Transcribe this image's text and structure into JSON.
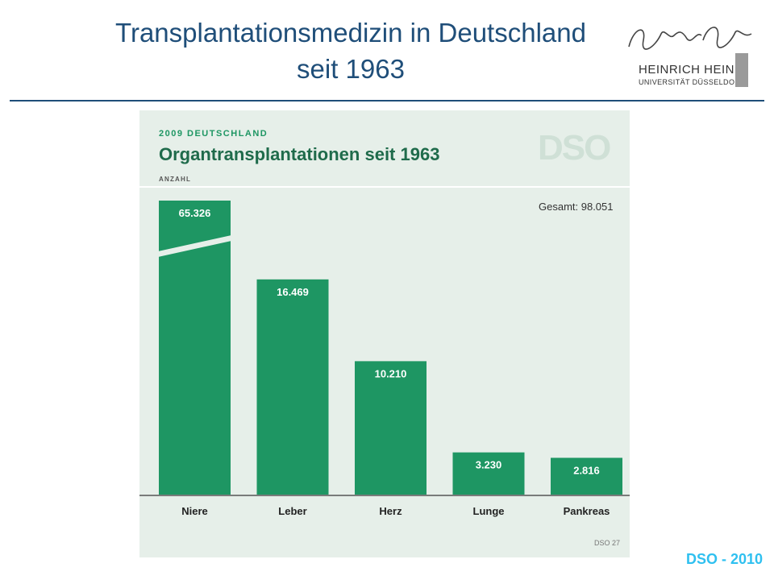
{
  "slide": {
    "title_line1": "Transplantationsmedizin in Deutschland",
    "title_line2": "seit 1963",
    "footer": "DSO - 2010"
  },
  "logo": {
    "signature": "Heinrich Heine",
    "name": "HEINRICH HEINE",
    "university": "UNIVERSITÄT DÜSSELDORF"
  },
  "chart_data": {
    "type": "bar",
    "kicker": "2009 DEUTSCHLAND",
    "title": "Organtransplantationen seit 1963",
    "ylabel": "ANZAHL",
    "total_label": "Gesamt: 98.051",
    "watermark": "DSO",
    "source_tag": "DSO 27",
    "categories": [
      "Niere",
      "Leber",
      "Herz",
      "Lunge",
      "Pankreas"
    ],
    "values": [
      65326,
      16469,
      10210,
      3230,
      2816
    ],
    "value_labels": [
      "65.326",
      "16.469",
      "10.210",
      "3.230",
      "2.816"
    ],
    "axis_break_on": "Niere",
    "ylim": [
      0,
      22500
    ],
    "grid": false,
    "colors": {
      "bar": "#1e9663",
      "panel": "#e6efe9",
      "title": "#1f6b4b",
      "slide_title": "#1f4e79",
      "footer": "#2fc0f0"
    }
  }
}
